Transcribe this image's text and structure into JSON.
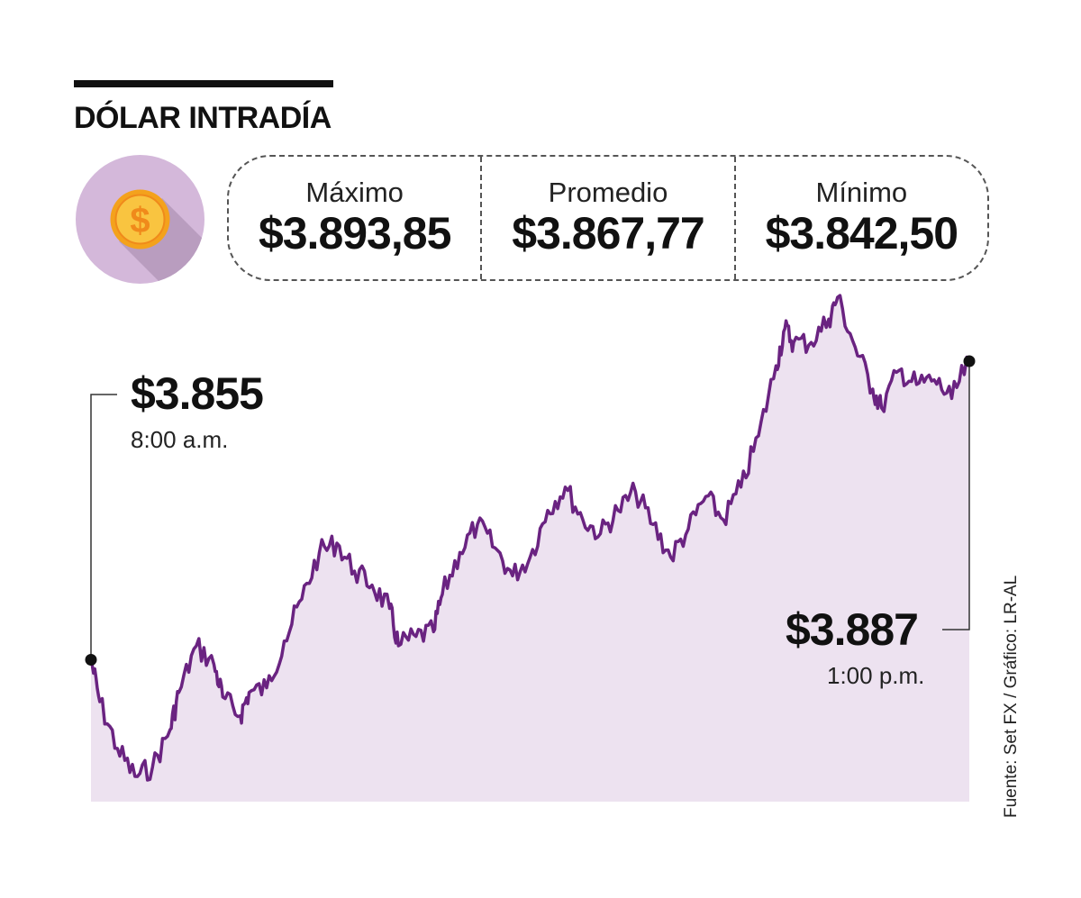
{
  "title": "DÓLAR INTRADÍA",
  "icon": "dollar-coin-icon",
  "colors": {
    "coin_background": "#d4b8da",
    "coin": "#f7b93a",
    "line": "#6a2381",
    "area": "#ede2f0"
  },
  "stats": [
    {
      "label": "Máximo",
      "value": "$3.893,85"
    },
    {
      "label": "Promedio",
      "value": "$3.867,77"
    },
    {
      "label": "Mínimo",
      "value": "$3.842,50"
    }
  ],
  "start": {
    "value": "$3.855",
    "time": "8:00 a.m."
  },
  "end": {
    "value": "$3.887",
    "time": "1:00 p.m."
  },
  "source": "Fuente: Set FX / Gráfico: LR-AL",
  "chart_data": {
    "type": "area",
    "title": "DÓLAR INTRADÍA",
    "xlabel": "",
    "ylabel": "",
    "x_range": [
      "8:00 a.m.",
      "1:00 p.m."
    ],
    "ylim": [
      3842.5,
      3893.85
    ],
    "grid": false,
    "series": [
      {
        "x": [
          0,
          0.01,
          0.03,
          0.05,
          0.07,
          0.09,
          0.1,
          0.12,
          0.14,
          0.15,
          0.17,
          0.18,
          0.2,
          0.22,
          0.24,
          0.26,
          0.28,
          0.3,
          0.32,
          0.34,
          0.35,
          0.37,
          0.39,
          0.4,
          0.42,
          0.44,
          0.46,
          0.48,
          0.5,
          0.52,
          0.54,
          0.56,
          0.58,
          0.6,
          0.62,
          0.64,
          0.66,
          0.68,
          0.7,
          0.72,
          0.74,
          0.76,
          0.78,
          0.79,
          0.8,
          0.82,
          0.84,
          0.85,
          0.87,
          0.89,
          0.9,
          0.92,
          0.94,
          0.96,
          0.98,
          1.0
        ],
        "values": [
          3855,
          3850.5,
          3845.5,
          3842.5,
          3843.5,
          3847.5,
          3851.5,
          3856.5,
          3854.5,
          3851,
          3849,
          3851.5,
          3852,
          3857,
          3861.5,
          3866.5,
          3867.5,
          3864.5,
          3863,
          3860.5,
          3856.5,
          3857.5,
          3858,
          3862,
          3866.5,
          3869.5,
          3867,
          3864,
          3866,
          3871,
          3873.5,
          3870,
          3868.5,
          3871,
          3873,
          3869.5,
          3866,
          3869,
          3872.5,
          3870,
          3873.5,
          3879,
          3886.5,
          3890.5,
          3889,
          3889,
          3891.5,
          3893.85,
          3888.5,
          3884,
          3882,
          3886,
          3884.5,
          3885,
          3883,
          3887
        ]
      }
    ]
  }
}
